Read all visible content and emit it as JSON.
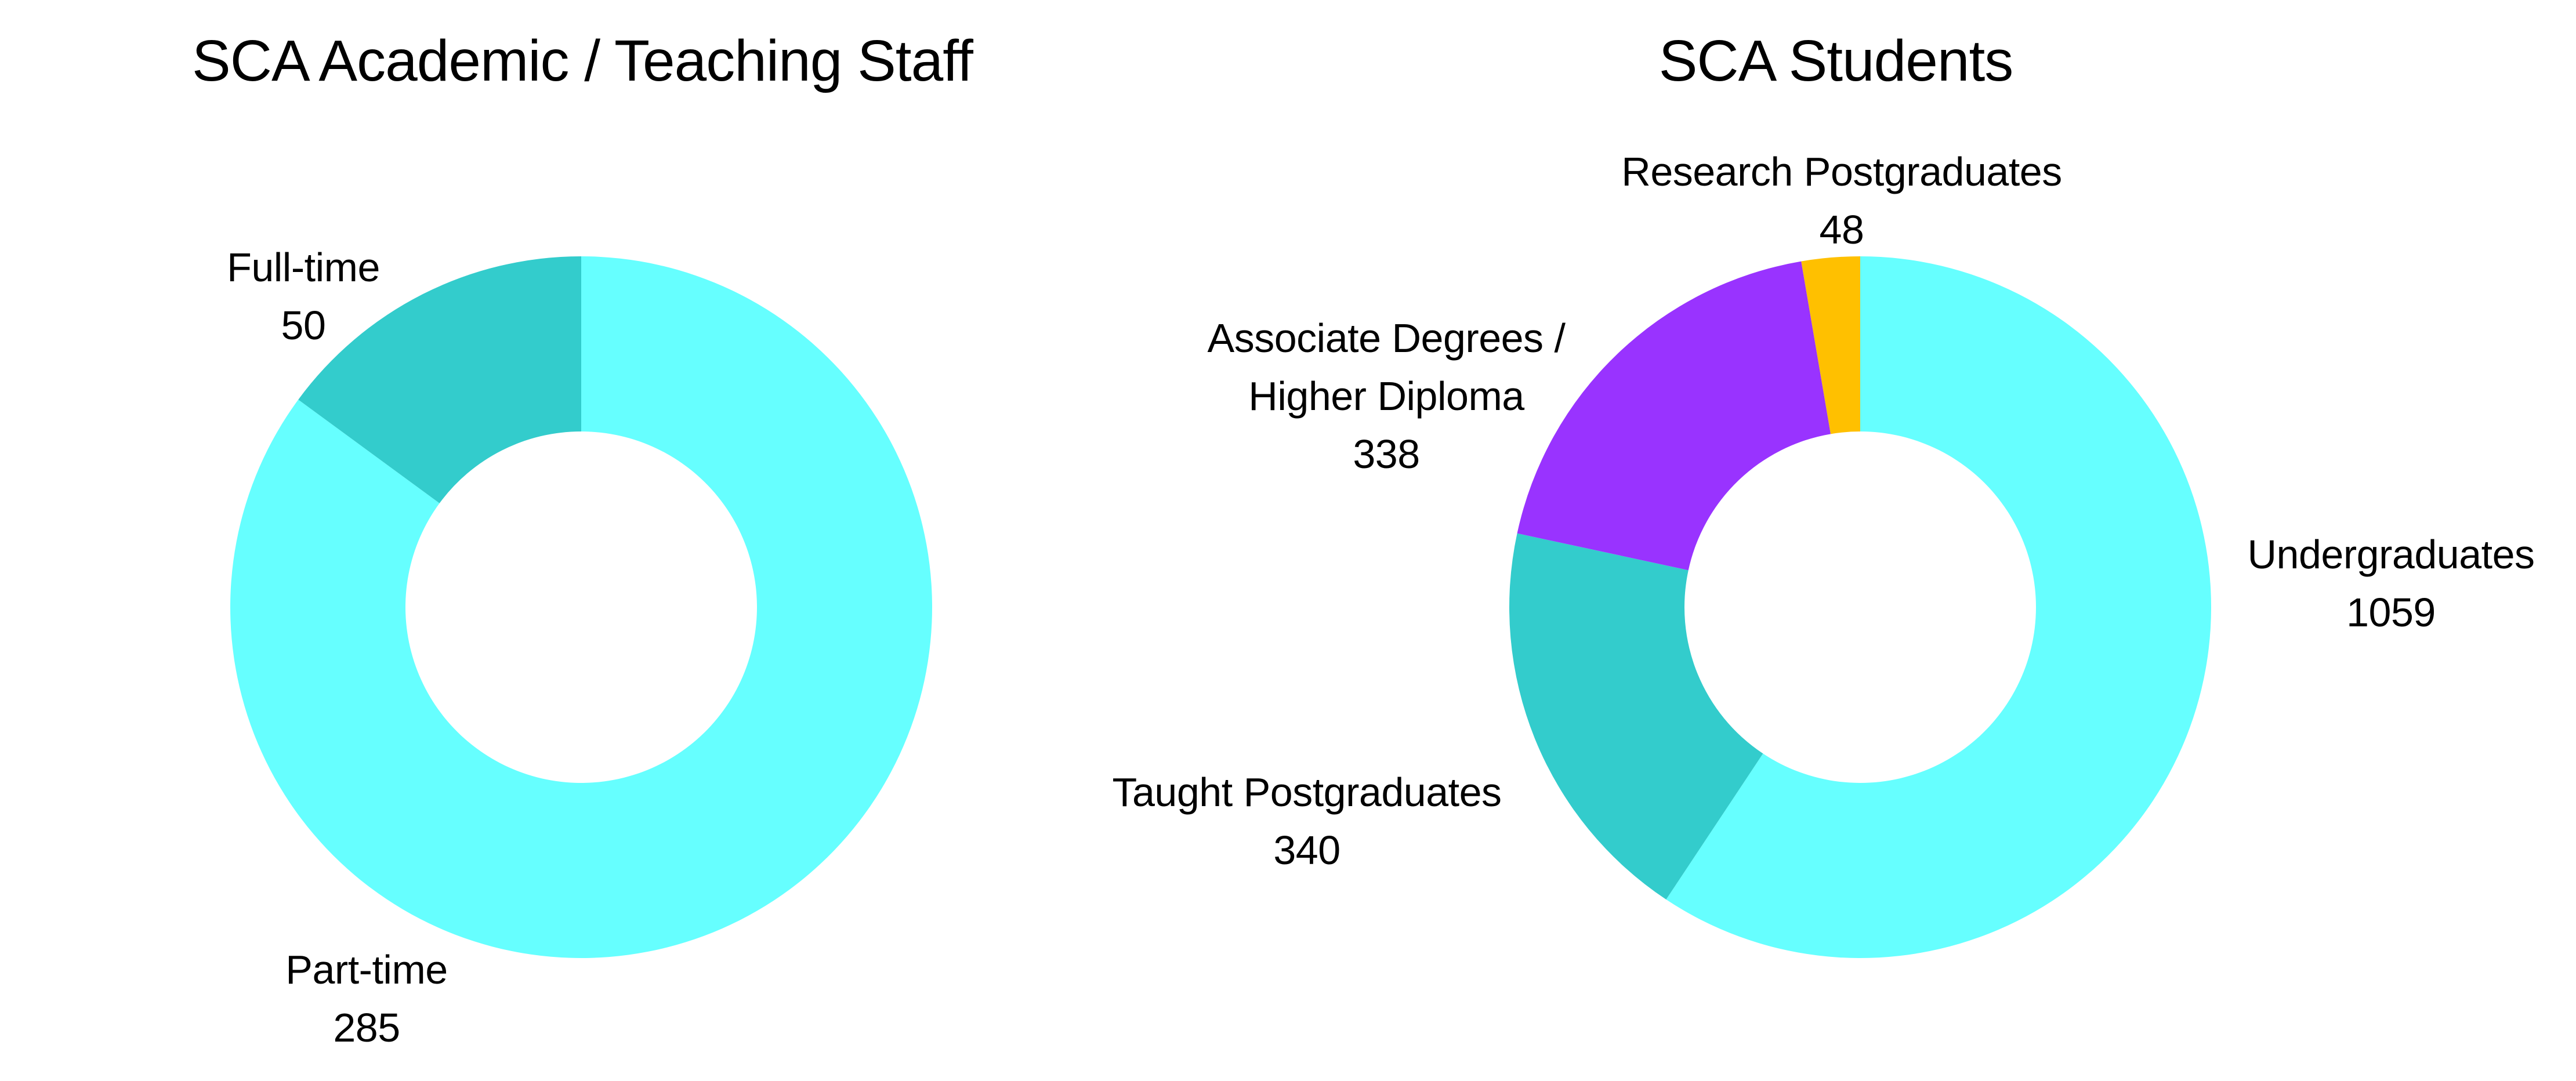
{
  "chart_data": [
    {
      "type": "pie",
      "subtype": "donut",
      "title": "SCA Academic / Teaching Staff",
      "categories": [
        "Part-time",
        "Full-time"
      ],
      "values": [
        285,
        50
      ],
      "colors": [
        "#66FFFF",
        "#33CCCC"
      ],
      "start_angle": "12 o'clock, clockwise",
      "legend": "none (data labels with category name and value)"
    },
    {
      "type": "pie",
      "subtype": "donut",
      "title": "SCA Students",
      "categories": [
        "Undergraduates",
        "Taught Postgraduates",
        "Associate Degrees / Higher Diploma",
        "Research Postgraduates"
      ],
      "values": [
        1059,
        340,
        338,
        48
      ],
      "colors": [
        "#66FFFF",
        "#33CCCC",
        "#9933FF",
        "#FFC000"
      ],
      "start_angle": "12 o'clock, clockwise",
      "legend": "none (data labels with category name and value)"
    }
  ],
  "staff": {
    "title": "SCA Academic / Teaching Staff",
    "labels": {
      "full_time": {
        "name": "Full-time",
        "value": "50"
      },
      "part_time": {
        "name": "Part-time",
        "value": "285"
      }
    }
  },
  "students": {
    "title": "SCA Students",
    "labels": {
      "research": {
        "name": "Research Postgraduates",
        "value": "48"
      },
      "associate": {
        "name_line1": "Associate Degrees /",
        "name_line2": "Higher Diploma",
        "value": "338"
      },
      "undergrad": {
        "name": "Undergraduates",
        "value": "1059"
      },
      "taught": {
        "name": "Taught Postgraduates",
        "value": "340"
      }
    }
  }
}
